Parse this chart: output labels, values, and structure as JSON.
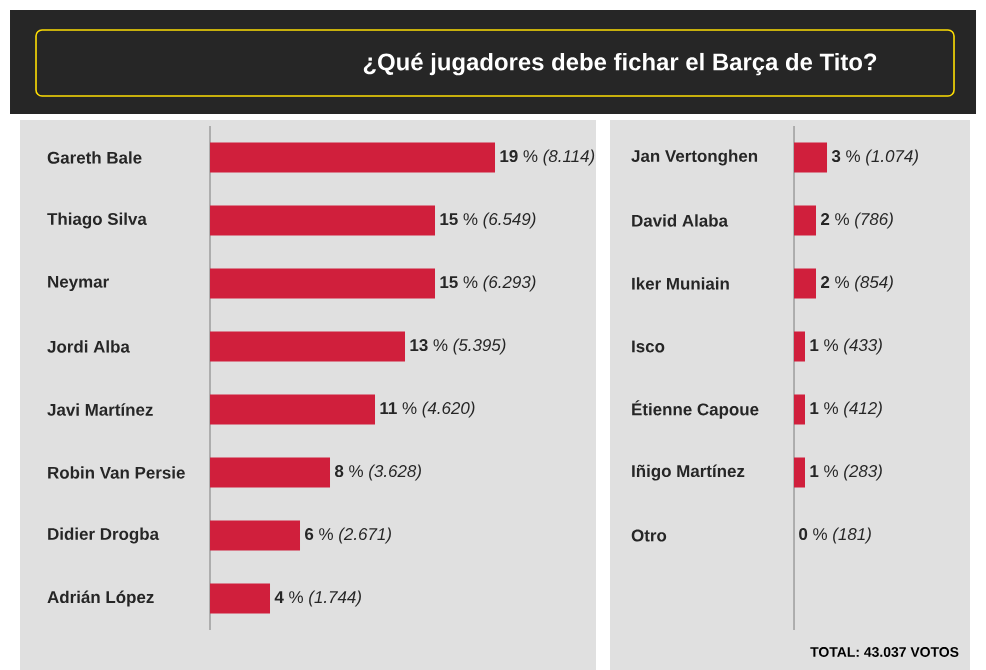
{
  "chart_data": [
    {
      "type": "bar",
      "orientation": "horizontal",
      "title": "¿Qué jugadores debe fichar el Barça de Tito?",
      "tick_labels": "y",
      "categories": [
        "Gareth Bale",
        "Thiago Silva",
        "Neymar",
        "Jordi Alba",
        "Javi Martínez",
        "Robin Van Persie",
        "Didier Drogba",
        "Adrián López"
      ],
      "values": [
        19,
        15,
        15,
        13,
        11,
        8,
        6,
        4
      ],
      "color": "#d01f3c",
      "value_labels": [
        "**19** % *(8.114)*",
        "**15** % *(6.549)*",
        "**15** % *(6.293)*",
        "**13** % *(5.395)*",
        "**11** % *(4.620)*",
        "**8** % *(3.628)*",
        "**6** % *(2.671)*",
        "**4** % *(1.744)*"
      ]
    },
    {
      "type": "bar",
      "orientation": "horizontal",
      "tick_labels": "y",
      "categories": [
        "Jan Vertonghen",
        "David Alaba",
        "Iker Muniain",
        "Isco",
        "Étienne Capoue",
        "Iñigo Martínez",
        "Otro"
      ],
      "values": [
        3,
        2,
        2,
        1,
        1,
        1,
        0
      ],
      "color": "#d01f3c",
      "value_labels": [
        "**3** % *(1.074)*",
        "**2** % *(786)*",
        "**2** % *(854)*",
        "**1** % *(433)*",
        "**1** % *(412)*",
        "**1** % *(283)*",
        "**0** % *(181)*"
      ],
      "annotations": [
        "TOTAL: 43.037 VOTOS"
      ]
    }
  ]
}
